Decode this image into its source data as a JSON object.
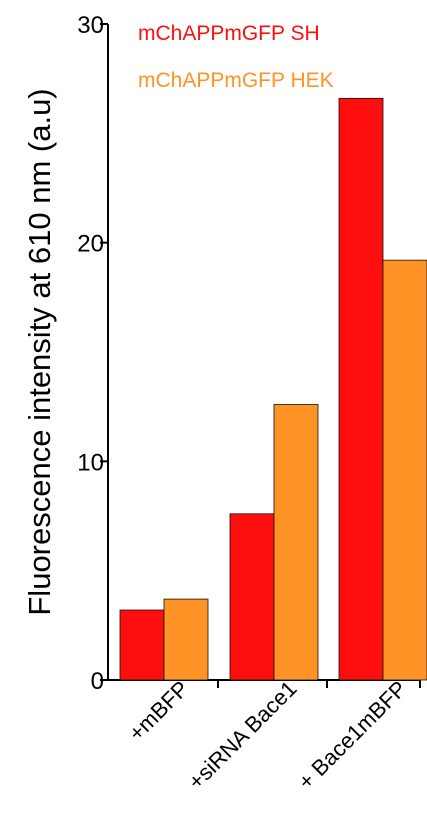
{
  "chart_data": {
    "type": "bar",
    "title": "",
    "xlabel": "",
    "ylabel": "Fluorescence intensity at  610 nm (a.u)",
    "ylim": [
      0,
      30
    ],
    "yticks": [
      0,
      10,
      20,
      30
    ],
    "grid": false,
    "legend_position": "top-right",
    "categories": [
      "+mBFP",
      "+siRNA Bace1",
      "+ Bace1mBFP"
    ],
    "series": [
      {
        "name": "mChAPPmGFP SH",
        "values": [
          3.2,
          7.6,
          26.6
        ],
        "color": "#ff0e0e"
      },
      {
        "name": "mChAPPmGFP HEK",
        "values": [
          3.7,
          12.6,
          19.2
        ],
        "color": "#ff9326"
      }
    ]
  }
}
